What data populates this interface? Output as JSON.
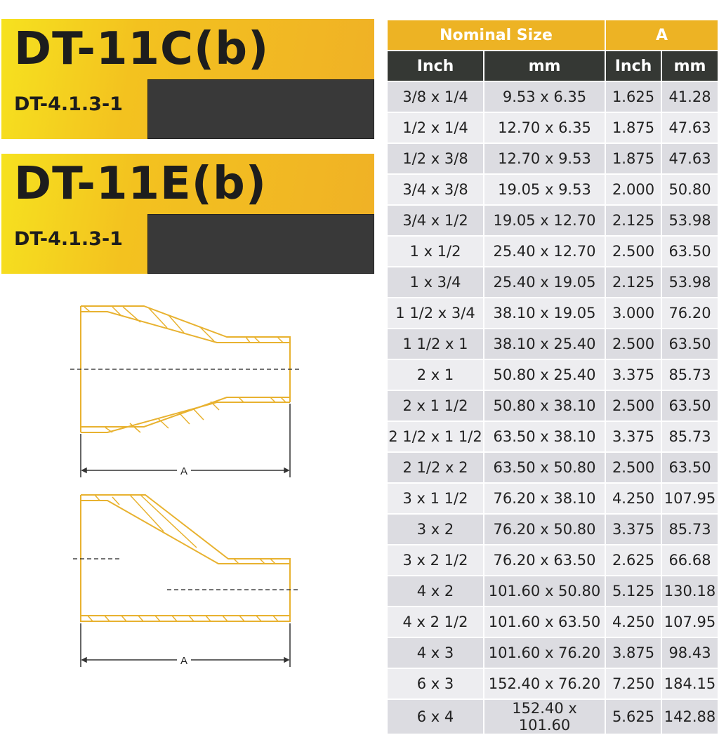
{
  "banners": [
    {
      "title": "DT-11C(b)",
      "code": "DT-4.1.3-1"
    },
    {
      "title": "DT-11E(b)",
      "code": "DT-4.1.3-1"
    }
  ],
  "table": {
    "group_headers": [
      "Nominal Size",
      "A"
    ],
    "sub_headers": [
      "Inch",
      "mm",
      "Inch",
      "mm"
    ],
    "rows": [
      [
        "3/8 x 1/4",
        "9.53 x 6.35",
        "1.625",
        "41.28"
      ],
      [
        "1/2 x 1/4",
        "12.70 x 6.35",
        "1.875",
        "47.63"
      ],
      [
        "1/2 x 3/8",
        "12.70 x 9.53",
        "1.875",
        "47.63"
      ],
      [
        "3/4 x 3/8",
        "19.05 x 9.53",
        "2.000",
        "50.80"
      ],
      [
        "3/4 x 1/2",
        "19.05 x 12.70",
        "2.125",
        "53.98"
      ],
      [
        "1 x 1/2",
        "25.40 x 12.70",
        "2.500",
        "63.50"
      ],
      [
        "1 x 3/4",
        "25.40 x 19.05",
        "2.125",
        "53.98"
      ],
      [
        "1 1/2 x 3/4",
        "38.10 x 19.05",
        "3.000",
        "76.20"
      ],
      [
        "1 1/2 x 1",
        "38.10 x 25.40",
        "2.500",
        "63.50"
      ],
      [
        "2 x 1",
        "50.80 x 25.40",
        "3.375",
        "85.73"
      ],
      [
        "2 x 1 1/2",
        "50.80 x 38.10",
        "2.500",
        "63.50"
      ],
      [
        "2 1/2 x 1 1/2",
        "63.50 x 38.10",
        "3.375",
        "85.73"
      ],
      [
        "2 1/2 x 2",
        "63.50 x 50.80",
        "2.500",
        "63.50"
      ],
      [
        "3 x 1 1/2",
        "76.20 x 38.10",
        "4.250",
        "107.95"
      ],
      [
        "3 x 2",
        "76.20 x 50.80",
        "3.375",
        "85.73"
      ],
      [
        "3 x 2 1/2",
        "76.20 x 63.50",
        "2.625",
        "66.68"
      ],
      [
        "4 x 2",
        "101.60 x 50.80",
        "5.125",
        "130.18"
      ],
      [
        "4 x 2 1/2",
        "101.60 x 63.50",
        "4.250",
        "107.95"
      ],
      [
        "4 x 3",
        "101.60 x 76.20",
        "3.875",
        "98.43"
      ],
      [
        "6 x 3",
        "152.40 x 76.20",
        "7.250",
        "184.15"
      ],
      [
        "6 x 4",
        "152.40 x 101.60",
        "5.625",
        "142.88"
      ]
    ]
  },
  "diagrams": {
    "dimension_label": "A"
  },
  "colors": {
    "gold": "#edb324",
    "dark": "#393939",
    "pipe": "#e8b230"
  }
}
